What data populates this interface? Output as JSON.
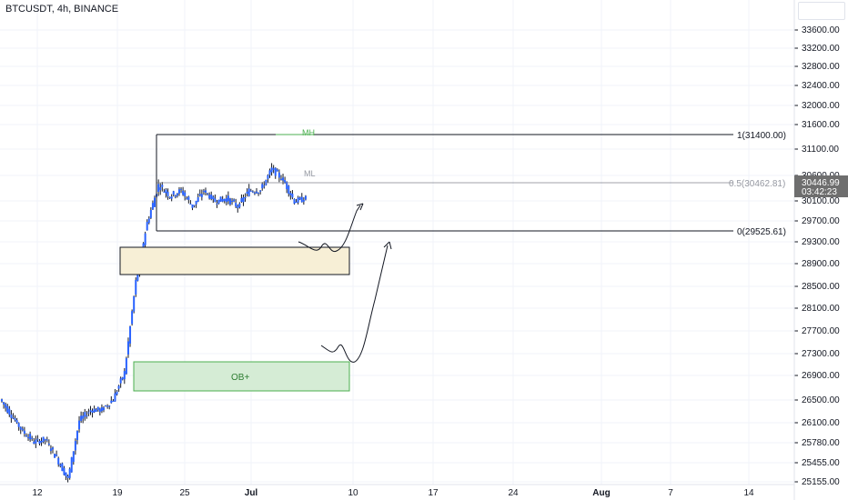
{
  "header": {
    "symbol_label": "BTCUSDT, 4h, BINANCE"
  },
  "price_axis": {
    "ticks": [
      "33600.00",
      "33200.00",
      "32800.00",
      "32400.00",
      "32000.00",
      "31600.00",
      "31100.00",
      "30600.00",
      "30100.00",
      "29700.00",
      "29300.00",
      "28900.00",
      "28500.00",
      "28100.00",
      "27700.00",
      "27300.00",
      "26900.00",
      "26500.00",
      "26100.00",
      "25780.00",
      "25455.00",
      "25155.00"
    ],
    "current_price": "30446.99",
    "countdown": "03:42:23"
  },
  "time_axis": {
    "labels": [
      "12",
      "19",
      "25",
      "Jul",
      "10",
      "17",
      "24",
      "Aug",
      "7",
      "14"
    ]
  },
  "annotations": {
    "range_high": "1(31400.00)",
    "range_mid": "0.5(30462.81)",
    "range_low": "0(29525.61)",
    "mh_label": "MH",
    "ml_label": "ML",
    "ob_label": "OB+"
  },
  "colors": {
    "candle": "#2962ff",
    "ob_fill": "#d5ecd5",
    "ob_border": "#4caf50",
    "supply_fill": "#f7efd6",
    "line": "#131722",
    "grid": "#f0f3fa"
  },
  "chart_data": {
    "type": "candlestick",
    "symbol": "BTCUSDT",
    "interval": "4h",
    "exchange": "BINANCE",
    "ylim": [
      25155,
      33600
    ],
    "close_series": [
      {
        "x": "Jun 9",
        "y": 26700
      },
      {
        "x": "Jun 10",
        "y": 26400
      },
      {
        "x": "Jun 11",
        "y": 26100
      },
      {
        "x": "Jun 12",
        "y": 25900
      },
      {
        "x": "Jun 13",
        "y": 25950
      },
      {
        "x": "Jun 14",
        "y": 25600
      },
      {
        "x": "Jun 15",
        "y": 25200
      },
      {
        "x": "Jun 16",
        "y": 26300
      },
      {
        "x": "Jun 17",
        "y": 26500
      },
      {
        "x": "Jun 18",
        "y": 26500
      },
      {
        "x": "Jun 19",
        "y": 26700
      },
      {
        "x": "Jun 20",
        "y": 27200
      },
      {
        "x": "Jun 21",
        "y": 28900
      },
      {
        "x": "Jun 22",
        "y": 30000
      },
      {
        "x": "Jun 23",
        "y": 30700
      },
      {
        "x": "Jun 24",
        "y": 30500
      },
      {
        "x": "Jun 25",
        "y": 30600
      },
      {
        "x": "Jun 26",
        "y": 30300
      },
      {
        "x": "Jun 27",
        "y": 30600
      },
      {
        "x": "Jun 28",
        "y": 30400
      },
      {
        "x": "Jun 29",
        "y": 30450
      },
      {
        "x": "Jun 30",
        "y": 30300
      },
      {
        "x": "Jul 1",
        "y": 30600
      },
      {
        "x": "Jul 2",
        "y": 30600
      },
      {
        "x": "Jul 3",
        "y": 31000
      },
      {
        "x": "Jul 4",
        "y": 30800
      },
      {
        "x": "Jul 5",
        "y": 30400
      },
      {
        "x": "Jul 6",
        "y": 30446.99
      }
    ],
    "levels": [
      {
        "label": "1",
        "value": 31400.0
      },
      {
        "label": "0.5",
        "value": 30462.81
      },
      {
        "label": "0",
        "value": 29525.61
      }
    ],
    "zones": [
      {
        "label": "",
        "from": 28700,
        "to": 29050
      },
      {
        "label": "OB+",
        "from": 26600,
        "to": 26980
      }
    ]
  }
}
